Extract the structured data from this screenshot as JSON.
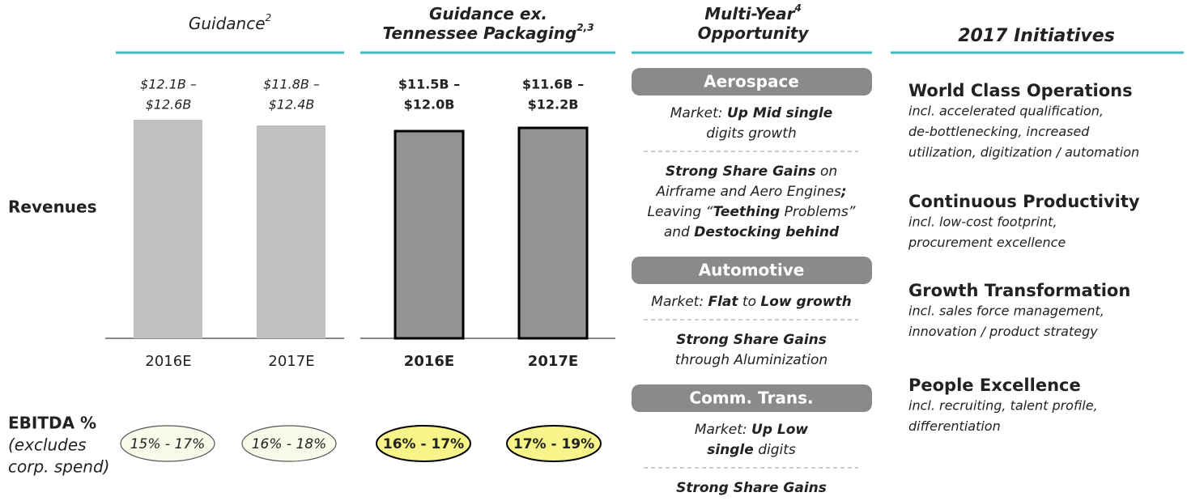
{
  "headers": [
    [
      {
        "text": "Guidance",
        "sup": "2"
      }
    ],
    [
      {
        "text": "Guidance ex."
      },
      {
        "text": "Tennessee Packaging",
        "sup": "2,3"
      }
    ],
    [
      {
        "text": "Multi-Year",
        "sup": "4"
      },
      {
        "text": "Opportunity"
      }
    ],
    [
      {
        "text": "2017 Initiatives"
      }
    ]
  ],
  "row_labels": {
    "revenues": "Revenues",
    "ebitda": [
      "EBITDA %",
      "(excludes",
      "corp. spend)"
    ]
  },
  "guidance": [
    {
      "range": [
        "$12.1B –",
        "$12.6B"
      ],
      "year": "2016E",
      "ebitda": "15% - 17%"
    },
    {
      "range": [
        "$11.8B –",
        "$12.4B"
      ],
      "year": "2017E",
      "ebitda": "16% - 18%"
    },
    {
      "range": [
        "$11.5B –",
        "$12.0B"
      ],
      "year": "2016E",
      "ebitda": "16% - 17%"
    },
    {
      "range": [
        "$11.6B –",
        "$12.2B"
      ],
      "year": "2017E",
      "ebitda": "17% - 19%"
    }
  ],
  "opportunity": [
    {
      "title": "Aerospace",
      "blocks": [
        [
          [
            {
              "text": "Market: "
            },
            {
              "text": "Up Mid single",
              "bold": true
            }
          ],
          [
            {
              "text": "digits growth"
            }
          ]
        ],
        [
          [
            {
              "text": "Strong Share Gains",
              "bold": true
            },
            {
              "text": " on"
            }
          ],
          [
            {
              "text": "Airframe and Aero Engines"
            },
            {
              "text": ";",
              "bold": true
            }
          ],
          [
            {
              "text": "Leaving “"
            },
            {
              "text": "Teething",
              "bold": true
            },
            {
              "text": " Problems”"
            }
          ],
          [
            {
              "text": "and "
            },
            {
              "text": "Destocking behind",
              "bold": true
            }
          ]
        ]
      ]
    },
    {
      "title": "Automotive",
      "blocks": [
        [
          [
            {
              "text": "Market: "
            },
            {
              "text": "Flat",
              "bold": true
            },
            {
              "text": " to "
            },
            {
              "text": "Low growth",
              "bold": true
            }
          ]
        ],
        [
          [
            {
              "text": "Strong Share Gains",
              "bold": true
            }
          ],
          [
            {
              "text": "through Aluminization"
            }
          ]
        ]
      ]
    },
    {
      "title": "Comm.  Trans.",
      "blocks": [
        [
          [
            {
              "text": "Market: "
            },
            {
              "text": "Up Low",
              "bold": true
            }
          ],
          [
            {
              "text": "single",
              "bold": true
            },
            {
              "text": " digits"
            }
          ]
        ],
        [
          [
            {
              "text": "Strong Share Gains",
              "bold": true
            }
          ]
        ]
      ]
    }
  ],
  "initiatives": [
    {
      "title": "World Class Operations",
      "details": [
        "incl. accelerated qualification,",
        "de-bottlenecking, increased",
        "utilization, digitization / automation"
      ]
    },
    {
      "title": "Continuous Productivity",
      "details": [
        "incl. low-cost footprint,",
        "procurement excellence"
      ]
    },
    {
      "title": "Growth Transformation",
      "details": [
        "incl. sales force management,",
        "innovation / product strategy"
      ]
    },
    {
      "title": "People Excellence",
      "details": [
        "incl. recruiting, talent profile,",
        "differentiation"
      ]
    }
  ]
}
